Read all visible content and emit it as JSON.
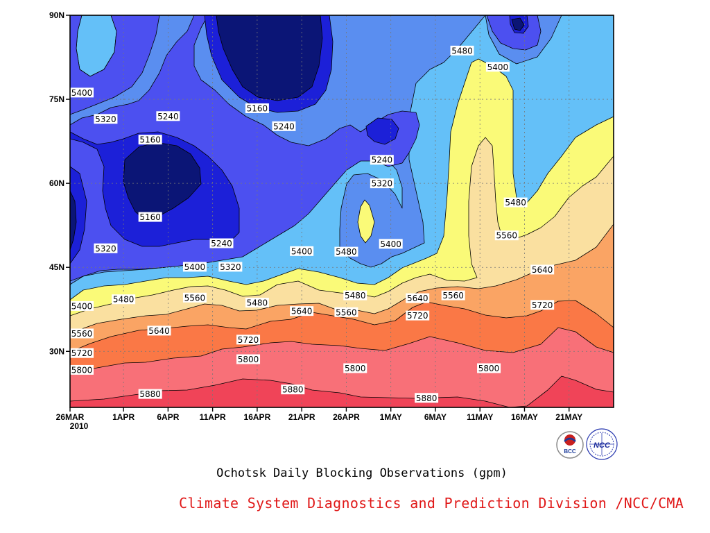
{
  "chart_data": {
    "type": "heatmap",
    "title": "Ochotsk Daily Blocking Observations (gpm)",
    "x_axis": {
      "ticks": [
        "26MAR",
        "1APR",
        "6APR",
        "11APR",
        "16APR",
        "21APR",
        "26APR",
        "1MAY",
        "6MAY",
        "11MAY",
        "16MAY",
        "21MAY"
      ],
      "year_label": "2010",
      "range": [
        "2010-03-26",
        "2010-05-26"
      ]
    },
    "y_axis": {
      "ticks": [
        "90N",
        "75N",
        "60N",
        "45N",
        "30N"
      ],
      "range": [
        20,
        90
      ]
    },
    "contour_levels": [
      5160,
      5240,
      5320,
      5400,
      5480,
      5560,
      5640,
      5720,
      5800,
      5880
    ],
    "colors": [
      "#0b1576",
      "#1c20d8",
      "#4c50f0",
      "#5a8ef0",
      "#64c0f8",
      "#fafa78",
      "#fae0a0",
      "#faa464",
      "#fa7846",
      "#f87078",
      "#f04458"
    ],
    "contour_labels": [
      {
        "text": "5400",
        "date": "2010-03-26",
        "lat": 76.2
      },
      {
        "text": "5320",
        "date": "2010-03-30",
        "lat": 71.5
      },
      {
        "text": "5240",
        "date": "2010-04-06",
        "lat": 72.0
      },
      {
        "text": "5160",
        "date": "2010-04-04",
        "lat": 67.8
      },
      {
        "text": "5160",
        "date": "2010-04-04",
        "lat": 54.0
      },
      {
        "text": "5320",
        "date": "2010-03-30",
        "lat": 48.4
      },
      {
        "text": "5240",
        "date": "2010-04-12",
        "lat": 49.3
      },
      {
        "text": "5400",
        "date": "2010-04-09",
        "lat": 45.1
      },
      {
        "text": "5320",
        "date": "2010-04-13",
        "lat": 45.1
      },
      {
        "text": "5160",
        "date": "2010-04-16",
        "lat": 73.4
      },
      {
        "text": "5240",
        "date": "2010-04-19",
        "lat": 70.2
      },
      {
        "text": "5240",
        "date": "2010-04-30",
        "lat": 64.2
      },
      {
        "text": "5320",
        "date": "2010-04-30",
        "lat": 60.0
      },
      {
        "text": "5400",
        "date": "2010-04-21",
        "lat": 47.9
      },
      {
        "text": "5480",
        "date": "2010-04-26",
        "lat": 47.8
      },
      {
        "text": "5400",
        "date": "2010-05-01",
        "lat": 49.2
      },
      {
        "text": "5480",
        "date": "2010-05-09",
        "lat": 83.7
      },
      {
        "text": "5400",
        "date": "2010-05-13",
        "lat": 80.8
      },
      {
        "text": "5480",
        "date": "2010-05-15",
        "lat": 56.6
      },
      {
        "text": "5560",
        "date": "2010-05-14",
        "lat": 50.7
      },
      {
        "text": "5640",
        "date": "2010-05-18",
        "lat": 44.6
      },
      {
        "text": "5720",
        "date": "2010-05-18",
        "lat": 38.3
      },
      {
        "text": "5400",
        "date": "2010-03-26",
        "lat": 38.1
      },
      {
        "text": "5480",
        "date": "2010-04-01",
        "lat": 39.3
      },
      {
        "text": "5560",
        "date": "2010-04-09",
        "lat": 39.6
      },
      {
        "text": "5480",
        "date": "2010-04-16",
        "lat": 38.7
      },
      {
        "text": "5480",
        "date": "2010-04-27",
        "lat": 40.0
      },
      {
        "text": "5640",
        "date": "2010-05-04",
        "lat": 39.5
      },
      {
        "text": "5560",
        "date": "2010-05-08",
        "lat": 40.0
      },
      {
        "text": "5560",
        "date": "2010-03-26",
        "lat": 33.2
      },
      {
        "text": "5640",
        "date": "2010-04-05",
        "lat": 33.7
      },
      {
        "text": "5640",
        "date": "2010-04-21",
        "lat": 37.2
      },
      {
        "text": "5560",
        "date": "2010-04-26",
        "lat": 37.0
      },
      {
        "text": "5720",
        "date": "2010-05-04",
        "lat": 36.4
      },
      {
        "text": "5720",
        "date": "2010-03-26",
        "lat": 29.7
      },
      {
        "text": "5720",
        "date": "2010-04-15",
        "lat": 32.1
      },
      {
        "text": "5800",
        "date": "2010-03-26",
        "lat": 26.7
      },
      {
        "text": "5800",
        "date": "2010-04-15",
        "lat": 28.6
      },
      {
        "text": "5800",
        "date": "2010-04-27",
        "lat": 27.0
      },
      {
        "text": "5800",
        "date": "2010-05-12",
        "lat": 27.0
      },
      {
        "text": "5880",
        "date": "2010-04-04",
        "lat": 22.4
      },
      {
        "text": "5880",
        "date": "2010-04-20",
        "lat": 23.2
      },
      {
        "text": "5880",
        "date": "2010-05-05",
        "lat": 21.7
      }
    ]
  },
  "footer": {
    "caption": "Ochotsk Daily Blocking Observations (gpm)",
    "credit": "Climate System Diagnostics and Prediction Division /NCC/CMA",
    "logo_bcc_text": "BCC",
    "logo_ncc_text": "NCC"
  }
}
